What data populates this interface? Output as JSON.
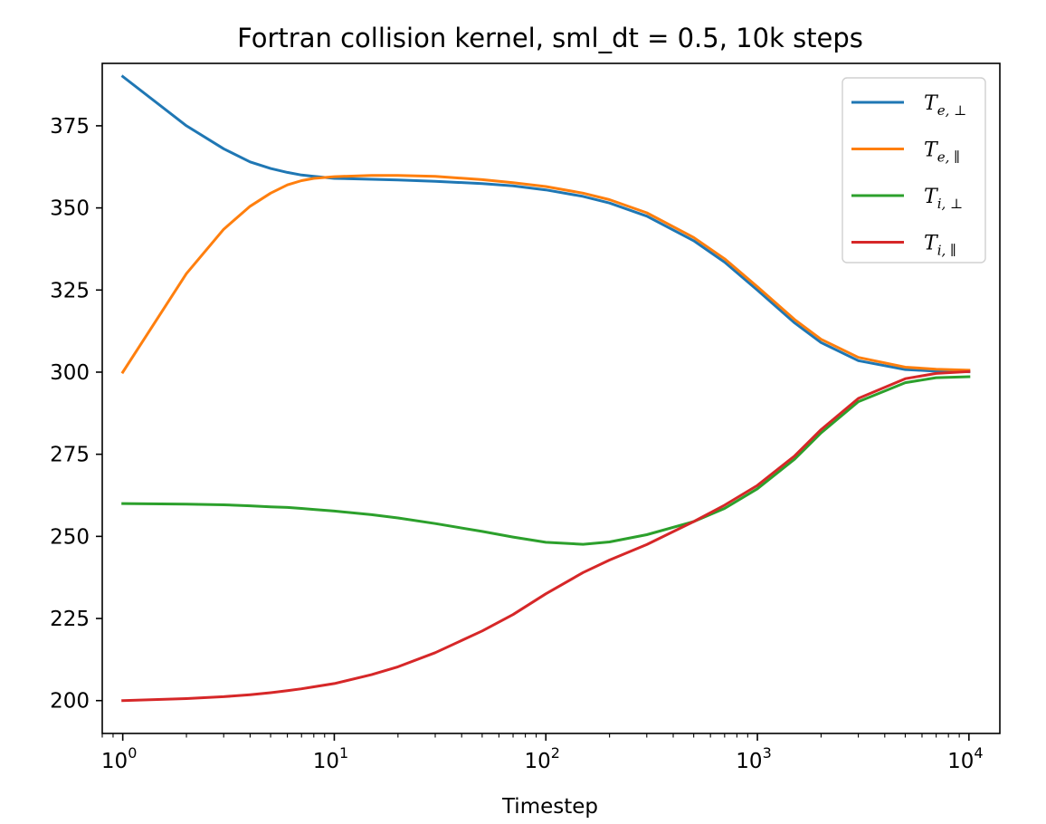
{
  "chart_data": {
    "type": "line",
    "title": "Fortran collision kernel, sml_dt = 0.5, 10k steps",
    "xlabel": "Timestep",
    "ylabel": "",
    "xscale": "log",
    "xlim": [
      0.8,
      14000
    ],
    "ylim": [
      190,
      394
    ],
    "xticks": [
      {
        "value": 1,
        "base": "10",
        "exp": "0"
      },
      {
        "value": 10,
        "base": "10",
        "exp": "1"
      },
      {
        "value": 100,
        "base": "10",
        "exp": "2"
      },
      {
        "value": 1000,
        "base": "10",
        "exp": "3"
      },
      {
        "value": 10000,
        "base": "10",
        "exp": "4"
      }
    ],
    "yticks": [
      200,
      225,
      250,
      275,
      300,
      325,
      350,
      375
    ],
    "grid": false,
    "legend_position": "top-right",
    "x": [
      1,
      2,
      3,
      4,
      5,
      6,
      7,
      8,
      10,
      15,
      20,
      30,
      50,
      70,
      100,
      150,
      200,
      300,
      500,
      700,
      1000,
      1500,
      2000,
      3000,
      5000,
      7000,
      10000
    ],
    "series": [
      {
        "label": {
          "main": "T",
          "sub": "e, ⊥"
        },
        "color": "#1f77b4",
        "values": [
          390,
          375,
          368,
          364,
          362,
          360.8,
          360,
          359.6,
          359,
          358.7,
          358.5,
          358.1,
          357.4,
          356.7,
          355.5,
          353.5,
          351.5,
          347.5,
          340,
          333.5,
          325,
          315,
          309,
          303.5,
          300.8,
          300.3,
          300.1
        ]
      },
      {
        "label": {
          "main": "T",
          "sub": "e, ∥"
        },
        "color": "#ff7f0e",
        "values": [
          300,
          330,
          343.5,
          350.5,
          354.5,
          357,
          358.3,
          359,
          359.5,
          359.9,
          359.9,
          359.6,
          358.6,
          357.7,
          356.5,
          354.5,
          352.5,
          348.5,
          341,
          334.5,
          326,
          316,
          310,
          304.5,
          301.5,
          300.9,
          300.6
        ]
      },
      {
        "label": {
          "main": "T",
          "sub": "i, ⊥"
        },
        "color": "#2ca02c",
        "values": [
          260,
          259.8,
          259.6,
          259.3,
          259,
          258.8,
          258.5,
          258.2,
          257.7,
          256.6,
          255.6,
          253.9,
          251.5,
          249.8,
          248.2,
          247.6,
          248.3,
          250.5,
          254.5,
          258.5,
          264.5,
          273.5,
          281.5,
          291,
          296.8,
          298.3,
          298.6
        ]
      },
      {
        "label": {
          "main": "T",
          "sub": "i, ∥"
        },
        "color": "#d62728",
        "values": [
          200,
          200.6,
          201.2,
          201.8,
          202.4,
          203,
          203.6,
          204.2,
          205.2,
          207.9,
          210.3,
          214.6,
          221.2,
          226.2,
          232.5,
          239,
          242.8,
          247.5,
          254.5,
          259.5,
          265.5,
          274.5,
          282.5,
          292,
          298,
          299.6,
          300.2
        ]
      }
    ]
  }
}
